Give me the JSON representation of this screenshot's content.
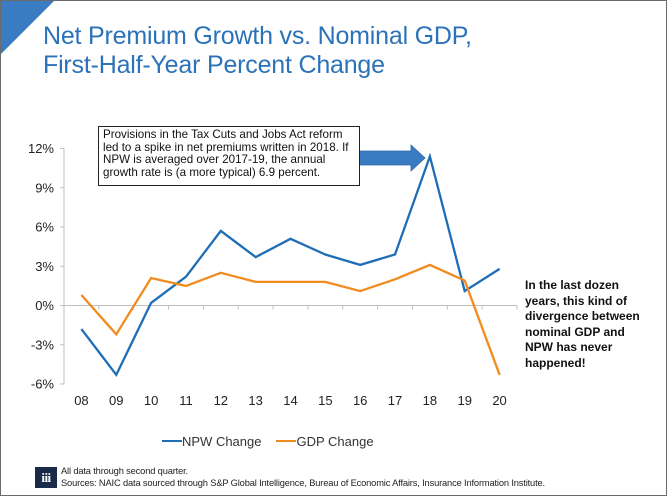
{
  "colors": {
    "accent": "#3a7cc2",
    "title": "#2b72b8",
    "npw": "#1f6db7",
    "gdp": "#f28b1e",
    "axis": "#bfbfbf",
    "logo_bg": "#1a2b4a"
  },
  "title": {
    "line1": "Net Premium Growth vs. Nominal GDP,",
    "line2": "First-Half-Year Percent Change"
  },
  "annotation": {
    "text": "Provisions in the Tax Cuts and Jobs Act reform led to a spike in net premiums written in 2018. If NPW is averaged over 2017-19, the annual growth rate is (a more typical) 6.9 percent.",
    "arrow_points_to": "18"
  },
  "side_note": "In the last dozen years, this kind of divergence between nominal GDP and NPW has never happened!",
  "footer": {
    "logo_text": "iii",
    "note": "All data through second quarter.",
    "sources": "Sources: NAIC data sourced through S&P Global Intelligence, Bureau of Economic Affairs, Insurance Information Institute."
  },
  "chart_data": {
    "type": "line",
    "title": "Net Premium Growth vs. Nominal GDP, First-Half-Year Percent Change",
    "xlabel": "",
    "ylabel": "",
    "categories": [
      "08",
      "09",
      "10",
      "11",
      "12",
      "13",
      "14",
      "15",
      "16",
      "17",
      "18",
      "19",
      "20"
    ],
    "ylim": [
      -6,
      12
    ],
    "yticks": [
      12,
      9,
      6,
      3,
      0,
      -3,
      -6
    ],
    "ytick_labels": [
      "12%",
      "9%",
      "6%",
      "3%",
      "0%",
      "-3%",
      "-6%"
    ],
    "grid": false,
    "legend_position": "bottom",
    "series": [
      {
        "name": "NPW Change",
        "color": "#1f6db7",
        "values": [
          -1.8,
          -5.3,
          0.2,
          2.2,
          5.7,
          3.7,
          5.1,
          3.9,
          3.1,
          3.9,
          11.4,
          1.1,
          2.8
        ]
      },
      {
        "name": "GDP Change",
        "color": "#f28b1e",
        "values": [
          0.8,
          -2.2,
          2.1,
          1.5,
          2.5,
          1.8,
          1.8,
          1.8,
          1.1,
          2.0,
          3.1,
          1.9,
          -5.3
        ]
      }
    ]
  }
}
